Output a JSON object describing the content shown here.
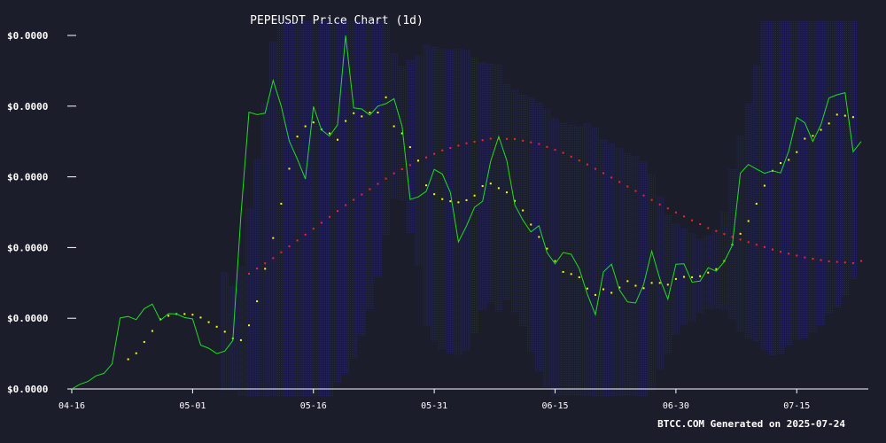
{
  "chart_data": {
    "type": "line",
    "title": "PEPEUSDT Price Chart (1d)",
    "footer": "BTCC.COM Generated on 2025-07-24",
    "xlabel": "",
    "ylabel": "",
    "x_tick_labels": [
      "04-16",
      "05-01",
      "05-16",
      "05-31",
      "06-15",
      "06-30",
      "07-15"
    ],
    "y_tick_labels": [
      "$0.0000",
      "$0.0000",
      "$0.0000",
      "$0.0000",
      "$0.0000",
      "$0.0000"
    ],
    "y_range_units": [
      0,
      100
    ],
    "grid": false,
    "legend": "none",
    "colors": {
      "background": "#1b1d2b",
      "price": "#22dd22",
      "ma20": "#ffff00",
      "ma50": "#ff2222",
      "band": "#2a2e8a",
      "axis": "#ffffff"
    },
    "series": [
      {
        "key": "price",
        "values": [
          0.0,
          1.3,
          2.1,
          3.7,
          4.4,
          7.1,
          20.1,
          20.5,
          19.6,
          22.7,
          24.0,
          19.4,
          21.3,
          21.2,
          20.2,
          19.8,
          12.4,
          11.5,
          10.0,
          10.7,
          13.7,
          49.1,
          78.3,
          77.6,
          78.0,
          87.3,
          80.0,
          70.1,
          65.0,
          59.4,
          79.9,
          73.3,
          71.5,
          74.7,
          100.0,
          79.5,
          79.2,
          77.5,
          80.0,
          80.7,
          82.1,
          74.3,
          53.6,
          54.3,
          55.9,
          62.1,
          60.8,
          55.6,
          41.6,
          46.1,
          51.4,
          53.1,
          64.4,
          71.4,
          64.6,
          52.0,
          47.8,
          44.4,
          46.2,
          38.6,
          35.4,
          38.6,
          38.1,
          34.0,
          26.8,
          21.0,
          33.1,
          35.3,
          28.0,
          24.6,
          24.3,
          29.6,
          39.0,
          31.2,
          25.4,
          35.3,
          35.4,
          30.2,
          30.5,
          34.3,
          33.3,
          36.0,
          40.6,
          61.0,
          63.5,
          62.2,
          61.0,
          61.7,
          61.1,
          67.3,
          76.8,
          75.3,
          70.0,
          74.7,
          82.3,
          83.2,
          83.8,
          67.1,
          70.0
        ]
      },
      {
        "key": "ma20",
        "values": [
          null,
          null,
          null,
          null,
          null,
          null,
          null,
          8.4,
          10.1,
          13.3,
          16.4,
          19.7,
          20.7,
          21.2,
          21.2,
          21.0,
          20.2,
          18.9,
          17.6,
          16.2,
          14.3,
          13.8,
          18.0,
          24.8,
          34.0,
          42.7,
          52.4,
          62.3,
          71.4,
          74.3,
          75.4,
          73.4,
          72.3,
          70.5,
          75.8,
          78.0,
          77.1,
          78.2,
          78.2,
          82.5,
          74.3,
          72.3,
          68.4,
          64.6,
          57.6,
          55.1,
          53.7,
          53.1,
          52.8,
          53.4,
          54.7,
          57.4,
          58.1,
          56.8,
          55.6,
          53.2,
          50.5,
          46.5,
          43.0,
          39.7,
          36.2,
          33.1,
          32.5,
          31.6,
          28.4,
          26.6,
          28.2,
          27.2,
          28.7,
          30.5,
          29.2,
          28.5,
          30.0,
          30.0,
          29.5,
          31.1,
          31.7,
          31.6,
          31.9,
          32.9,
          33.9,
          36.2,
          40.8,
          43.9,
          47.5,
          52.4,
          57.5,
          61.7,
          63.9,
          64.8,
          67.0,
          70.8,
          71.6,
          73.3,
          75.1,
          77.6,
          77.3,
          76.9
        ]
      },
      {
        "key": "ma50",
        "values": [
          null,
          null,
          null,
          null,
          null,
          null,
          null,
          null,
          null,
          null,
          null,
          null,
          null,
          null,
          null,
          null,
          null,
          null,
          null,
          null,
          null,
          null,
          null,
          null,
          null,
          null,
          null,
          null,
          null,
          null,
          null,
          null,
          null,
          null,
          null,
          null,
          null,
          null,
          null,
          null,
          null,
          null,
          null,
          null,
          null,
          null,
          null,
          null,
          null,
          null,
          null,
          null,
          null,
          null,
          null,
          null,
          null,
          null,
          null,
          null,
          null,
          null,
          null,
          null,
          null,
          null,
          null,
          null,
          null,
          null,
          null,
          null,
          null,
          null,
          null,
          null,
          null,
          null,
          null,
          null,
          null,
          null,
          null,
          null,
          null,
          null,
          null,
          null,
          null,
          null,
          null,
          null,
          null,
          null,
          null,
          null,
          null,
          null,
          null
        ]
      }
    ],
    "band": {
      "upper": [],
      "lower": []
    }
  }
}
